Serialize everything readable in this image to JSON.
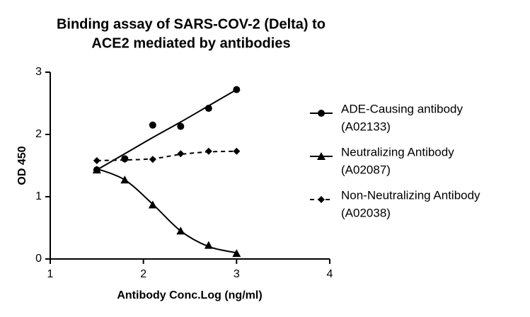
{
  "chart_data": {
    "type": "scatter",
    "title": [
      "Binding assay of SARS-COV-2 (Delta) to",
      "ACE2 mediated by antibodies"
    ],
    "xlabel": "Antibody Conc.Log (ng/ml)",
    "ylabel": "OD 450",
    "x": [
      1.5,
      1.8,
      2.1,
      2.4,
      2.7,
      3.0
    ],
    "xlim": [
      1,
      4
    ],
    "xticks": [
      1,
      2,
      3,
      4
    ],
    "ylim": [
      0,
      3
    ],
    "yticks": [
      0,
      1,
      2,
      3
    ],
    "series": [
      {
        "name": "ADE-Causing antibody",
        "code": "(A02133)",
        "color": "#000000",
        "marker": "circle",
        "dash": false,
        "values": [
          1.43,
          1.61,
          2.15,
          2.13,
          2.42,
          2.72
        ],
        "fit": [
          1.43,
          1.69,
          1.95,
          2.2,
          2.46,
          2.72
        ]
      },
      {
        "name": "Neutralizing Antibody",
        "code": "(A02087)",
        "color": "#000000",
        "marker": "triangle",
        "dash": false,
        "values": [
          1.43,
          1.27,
          0.87,
          0.45,
          0.22,
          0.09
        ],
        "fit": [
          1.45,
          1.27,
          0.88,
          0.45,
          0.2,
          0.1
        ]
      },
      {
        "name": "Non-Neutralizing Antibody",
        "code": "(A02038)",
        "color": "#000000",
        "marker": "diamond",
        "dash": true,
        "values": [
          1.58,
          1.6,
          1.6,
          1.69,
          1.73,
          1.73
        ],
        "fit": [
          1.58,
          1.59,
          1.61,
          1.68,
          1.72,
          1.73
        ]
      }
    ]
  }
}
